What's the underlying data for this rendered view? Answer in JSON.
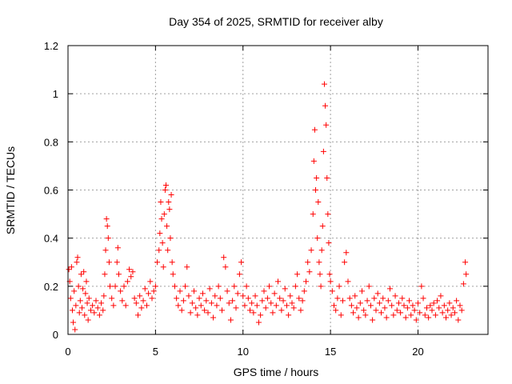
{
  "chart_data": {
    "type": "scatter",
    "title": "Day 354 of 2025, SRMTID for receiver alby",
    "xlabel": "GPS time / hours",
    "ylabel": "SRMTID / TECUs",
    "xlim": [
      0,
      24
    ],
    "ylim": [
      0,
      1.2
    ],
    "xticks": [
      0,
      5,
      10,
      15,
      20
    ],
    "xtick_labels": [
      "0",
      "5",
      "10",
      "15",
      "20"
    ],
    "yticks": [
      0,
      0.2,
      0.4,
      0.6,
      0.8,
      1,
      1.2
    ],
    "ytick_labels": [
      "0",
      "0.2",
      "0.4",
      "0.6",
      "0.8",
      "1",
      "1.2"
    ],
    "grid": true,
    "marker": "+",
    "series_color": "#ff0000",
    "series": [
      {
        "name": "SRMTID",
        "points": [
          [
            0.05,
            0.27
          ],
          [
            0.1,
            0.22
          ],
          [
            0.15,
            0.15
          ],
          [
            0.2,
            0.28
          ],
          [
            0.25,
            0.1
          ],
          [
            0.3,
            0.05
          ],
          [
            0.35,
            0.18
          ],
          [
            0.4,
            0.02
          ],
          [
            0.45,
            0.12
          ],
          [
            0.5,
            0.3
          ],
          [
            0.55,
            0.32
          ],
          [
            0.6,
            0.2
          ],
          [
            0.65,
            0.09
          ],
          [
            0.7,
            0.14
          ],
          [
            0.75,
            0.25
          ],
          [
            0.8,
            0.11
          ],
          [
            0.85,
            0.19
          ],
          [
            0.9,
            0.26
          ],
          [
            0.95,
            0.08
          ],
          [
            1.0,
            0.17
          ],
          [
            1.05,
            0.22
          ],
          [
            1.1,
            0.13
          ],
          [
            1.15,
            0.06
          ],
          [
            1.2,
            0.15
          ],
          [
            1.3,
            0.1
          ],
          [
            1.4,
            0.12
          ],
          [
            1.5,
            0.09
          ],
          [
            1.6,
            0.14
          ],
          [
            1.7,
            0.11
          ],
          [
            1.8,
            0.08
          ],
          [
            1.9,
            0.13
          ],
          [
            2.0,
            0.1
          ],
          [
            2.05,
            0.16
          ],
          [
            2.1,
            0.25
          ],
          [
            2.15,
            0.35
          ],
          [
            2.2,
            0.48
          ],
          [
            2.25,
            0.45
          ],
          [
            2.3,
            0.4
          ],
          [
            2.35,
            0.3
          ],
          [
            2.4,
            0.2
          ],
          [
            2.5,
            0.15
          ],
          [
            2.6,
            0.12
          ],
          [
            2.7,
            0.2
          ],
          [
            2.8,
            0.3
          ],
          [
            2.85,
            0.36
          ],
          [
            2.9,
            0.25
          ],
          [
            3.0,
            0.18
          ],
          [
            3.1,
            0.14
          ],
          [
            3.2,
            0.2
          ],
          [
            3.3,
            0.12
          ],
          [
            3.4,
            0.22
          ],
          [
            3.5,
            0.27
          ],
          [
            3.6,
            0.24
          ],
          [
            3.7,
            0.26
          ],
          [
            3.8,
            0.15
          ],
          [
            3.9,
            0.13
          ],
          [
            4.0,
            0.08
          ],
          [
            4.1,
            0.16
          ],
          [
            4.2,
            0.11
          ],
          [
            4.3,
            0.14
          ],
          [
            4.4,
            0.19
          ],
          [
            4.5,
            0.12
          ],
          [
            4.6,
            0.17
          ],
          [
            4.7,
            0.22
          ],
          [
            4.8,
            0.15
          ],
          [
            4.9,
            0.18
          ],
          [
            5.0,
            0.2
          ],
          [
            5.1,
            0.3
          ],
          [
            5.2,
            0.35
          ],
          [
            5.25,
            0.42
          ],
          [
            5.3,
            0.55
          ],
          [
            5.35,
            0.48
          ],
          [
            5.4,
            0.38
          ],
          [
            5.45,
            0.28
          ],
          [
            5.5,
            0.5
          ],
          [
            5.55,
            0.6
          ],
          [
            5.6,
            0.62
          ],
          [
            5.65,
            0.45
          ],
          [
            5.7,
            0.35
          ],
          [
            5.75,
            0.55
          ],
          [
            5.8,
            0.52
          ],
          [
            5.85,
            0.4
          ],
          [
            5.9,
            0.58
          ],
          [
            5.95,
            0.3
          ],
          [
            6.0,
            0.25
          ],
          [
            6.1,
            0.2
          ],
          [
            6.2,
            0.15
          ],
          [
            6.3,
            0.12
          ],
          [
            6.4,
            0.18
          ],
          [
            6.5,
            0.1
          ],
          [
            6.6,
            0.14
          ],
          [
            6.7,
            0.2
          ],
          [
            6.8,
            0.28
          ],
          [
            6.9,
            0.16
          ],
          [
            7.0,
            0.09
          ],
          [
            7.1,
            0.13
          ],
          [
            7.2,
            0.18
          ],
          [
            7.3,
            0.11
          ],
          [
            7.4,
            0.08
          ],
          [
            7.5,
            0.15
          ],
          [
            7.6,
            0.12
          ],
          [
            7.7,
            0.17
          ],
          [
            7.8,
            0.1
          ],
          [
            7.9,
            0.14
          ],
          [
            8.0,
            0.09
          ],
          [
            8.1,
            0.19
          ],
          [
            8.2,
            0.13
          ],
          [
            8.3,
            0.07
          ],
          [
            8.4,
            0.16
          ],
          [
            8.5,
            0.12
          ],
          [
            8.6,
            0.2
          ],
          [
            8.7,
            0.15
          ],
          [
            8.8,
            0.1
          ],
          [
            8.9,
            0.32
          ],
          [
            9.0,
            0.28
          ],
          [
            9.1,
            0.18
          ],
          [
            9.2,
            0.13
          ],
          [
            9.3,
            0.06
          ],
          [
            9.4,
            0.14
          ],
          [
            9.5,
            0.2
          ],
          [
            9.6,
            0.11
          ],
          [
            9.7,
            0.17
          ],
          [
            9.8,
            0.25
          ],
          [
            9.9,
            0.3
          ],
          [
            10.0,
            0.16
          ],
          [
            10.1,
            0.12
          ],
          [
            10.2,
            0.2
          ],
          [
            10.3,
            0.15
          ],
          [
            10.4,
            0.1
          ],
          [
            10.5,
            0.13
          ],
          [
            10.6,
            0.09
          ],
          [
            10.7,
            0.16
          ],
          [
            10.8,
            0.12
          ],
          [
            10.9,
            0.05
          ],
          [
            11.0,
            0.08
          ],
          [
            11.1,
            0.14
          ],
          [
            11.2,
            0.18
          ],
          [
            11.3,
            0.11
          ],
          [
            11.4,
            0.15
          ],
          [
            11.5,
            0.2
          ],
          [
            11.6,
            0.13
          ],
          [
            11.7,
            0.09
          ],
          [
            11.8,
            0.17
          ],
          [
            11.9,
            0.12
          ],
          [
            12.0,
            0.22
          ],
          [
            12.1,
            0.15
          ],
          [
            12.2,
            0.1
          ],
          [
            12.3,
            0.14
          ],
          [
            12.4,
            0.19
          ],
          [
            12.5,
            0.12
          ],
          [
            12.6,
            0.08
          ],
          [
            12.7,
            0.16
          ],
          [
            12.8,
            0.13
          ],
          [
            12.9,
            0.11
          ],
          [
            13.0,
            0.2
          ],
          [
            13.1,
            0.25
          ],
          [
            13.2,
            0.15
          ],
          [
            13.3,
            0.1
          ],
          [
            13.4,
            0.14
          ],
          [
            13.5,
            0.18
          ],
          [
            13.6,
            0.22
          ],
          [
            13.7,
            0.3
          ],
          [
            13.8,
            0.26
          ],
          [
            13.9,
            0.35
          ],
          [
            14.0,
            0.5
          ],
          [
            14.05,
            0.72
          ],
          [
            14.1,
            0.85
          ],
          [
            14.15,
            0.6
          ],
          [
            14.2,
            0.65
          ],
          [
            14.25,
            0.4
          ],
          [
            14.3,
            0.55
          ],
          [
            14.35,
            0.3
          ],
          [
            14.4,
            0.25
          ],
          [
            14.45,
            0.2
          ],
          [
            14.5,
            0.35
          ],
          [
            14.55,
            0.45
          ],
          [
            14.6,
            0.76
          ],
          [
            14.65,
            1.04
          ],
          [
            14.7,
            0.95
          ],
          [
            14.75,
            0.87
          ],
          [
            14.8,
            0.65
          ],
          [
            14.85,
            0.5
          ],
          [
            14.9,
            0.38
          ],
          [
            14.95,
            0.25
          ],
          [
            15.0,
            0.22
          ],
          [
            15.1,
            0.18
          ],
          [
            15.2,
            0.12
          ],
          [
            15.3,
            0.1
          ],
          [
            15.4,
            0.15
          ],
          [
            15.5,
            0.2
          ],
          [
            15.6,
            0.08
          ],
          [
            15.7,
            0.14
          ],
          [
            15.8,
            0.3
          ],
          [
            15.9,
            0.34
          ],
          [
            16.0,
            0.22
          ],
          [
            16.1,
            0.15
          ],
          [
            16.2,
            0.12
          ],
          [
            16.3,
            0.09
          ],
          [
            16.4,
            0.16
          ],
          [
            16.5,
            0.11
          ],
          [
            16.6,
            0.07
          ],
          [
            16.7,
            0.13
          ],
          [
            16.8,
            0.18
          ],
          [
            16.9,
            0.1
          ],
          [
            17.0,
            0.08
          ],
          [
            17.1,
            0.14
          ],
          [
            17.2,
            0.2
          ],
          [
            17.3,
            0.12
          ],
          [
            17.4,
            0.06
          ],
          [
            17.5,
            0.15
          ],
          [
            17.6,
            0.1
          ],
          [
            17.7,
            0.17
          ],
          [
            17.8,
            0.13
          ],
          [
            17.9,
            0.09
          ],
          [
            18.0,
            0.15
          ],
          [
            18.1,
            0.11
          ],
          [
            18.2,
            0.07
          ],
          [
            18.3,
            0.14
          ],
          [
            18.4,
            0.19
          ],
          [
            18.5,
            0.12
          ],
          [
            18.6,
            0.08
          ],
          [
            18.7,
            0.16
          ],
          [
            18.8,
            0.1
          ],
          [
            18.9,
            0.13
          ],
          [
            19.0,
            0.09
          ],
          [
            19.1,
            0.15
          ],
          [
            19.2,
            0.12
          ],
          [
            19.3,
            0.07
          ],
          [
            19.4,
            0.11
          ],
          [
            19.5,
            0.14
          ],
          [
            19.6,
            0.08
          ],
          [
            19.7,
            0.12
          ],
          [
            19.8,
            0.1
          ],
          [
            19.9,
            0.06
          ],
          [
            20.0,
            0.13
          ],
          [
            20.1,
            0.09
          ],
          [
            20.2,
            0.2
          ],
          [
            20.3,
            0.15
          ],
          [
            20.4,
            0.08
          ],
          [
            20.5,
            0.11
          ],
          [
            20.6,
            0.07
          ],
          [
            20.7,
            0.12
          ],
          [
            20.8,
            0.1
          ],
          [
            20.9,
            0.13
          ],
          [
            21.0,
            0.08
          ],
          [
            21.1,
            0.14
          ],
          [
            21.2,
            0.11
          ],
          [
            21.3,
            0.16
          ],
          [
            21.4,
            0.09
          ],
          [
            21.5,
            0.12
          ],
          [
            21.6,
            0.07
          ],
          [
            21.7,
            0.1
          ],
          [
            21.8,
            0.13
          ],
          [
            21.9,
            0.08
          ],
          [
            22.0,
            0.11
          ],
          [
            22.1,
            0.09
          ],
          [
            22.2,
            0.14
          ],
          [
            22.3,
            0.06
          ],
          [
            22.4,
            0.12
          ],
          [
            22.5,
            0.1
          ],
          [
            22.6,
            0.21
          ],
          [
            22.7,
            0.3
          ],
          [
            22.75,
            0.25
          ]
        ]
      }
    ]
  }
}
